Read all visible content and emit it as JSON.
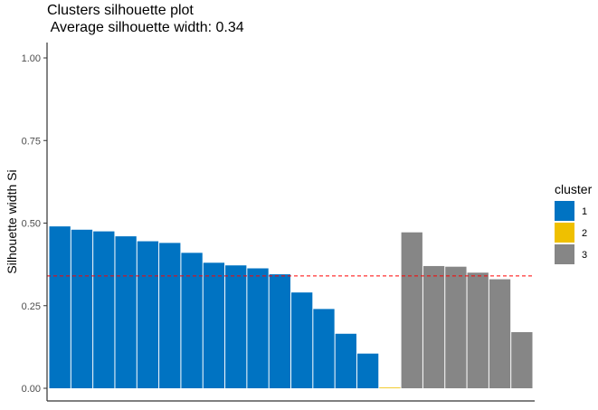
{
  "chart_data": {
    "type": "bar",
    "title": "Clusters silhouette plot",
    "subtitle": " Average silhouette width: 0.34",
    "xlabel": "",
    "ylabel": "Silhouette width Si",
    "ylim": [
      0,
      1.05
    ],
    "yticks": [
      "0.00",
      "0.25",
      "0.50",
      "0.75",
      "1.00"
    ],
    "average_silhouette": 0.34,
    "reference_line_color": "#ff0000",
    "grid": false,
    "legend": {
      "title": "cluster",
      "position": "right",
      "entries": [
        {
          "label": "1",
          "color": "#0073c2"
        },
        {
          "label": "2",
          "color": "#efc000"
        },
        {
          "label": "3",
          "color": "#868686"
        }
      ]
    },
    "bars": [
      {
        "cluster": "1",
        "value": 0.49
      },
      {
        "cluster": "1",
        "value": 0.48
      },
      {
        "cluster": "1",
        "value": 0.475
      },
      {
        "cluster": "1",
        "value": 0.46
      },
      {
        "cluster": "1",
        "value": 0.445
      },
      {
        "cluster": "1",
        "value": 0.44
      },
      {
        "cluster": "1",
        "value": 0.41
      },
      {
        "cluster": "1",
        "value": 0.38
      },
      {
        "cluster": "1",
        "value": 0.372
      },
      {
        "cluster": "1",
        "value": 0.363
      },
      {
        "cluster": "1",
        "value": 0.345
      },
      {
        "cluster": "1",
        "value": 0.29
      },
      {
        "cluster": "1",
        "value": 0.24
      },
      {
        "cluster": "1",
        "value": 0.165
      },
      {
        "cluster": "1",
        "value": 0.105
      },
      {
        "cluster": "2",
        "value": 0.0
      },
      {
        "cluster": "3",
        "value": 0.472
      },
      {
        "cluster": "3",
        "value": 0.37
      },
      {
        "cluster": "3",
        "value": 0.368
      },
      {
        "cluster": "3",
        "value": 0.35
      },
      {
        "cluster": "3",
        "value": 0.33
      },
      {
        "cluster": "3",
        "value": 0.17
      }
    ]
  }
}
